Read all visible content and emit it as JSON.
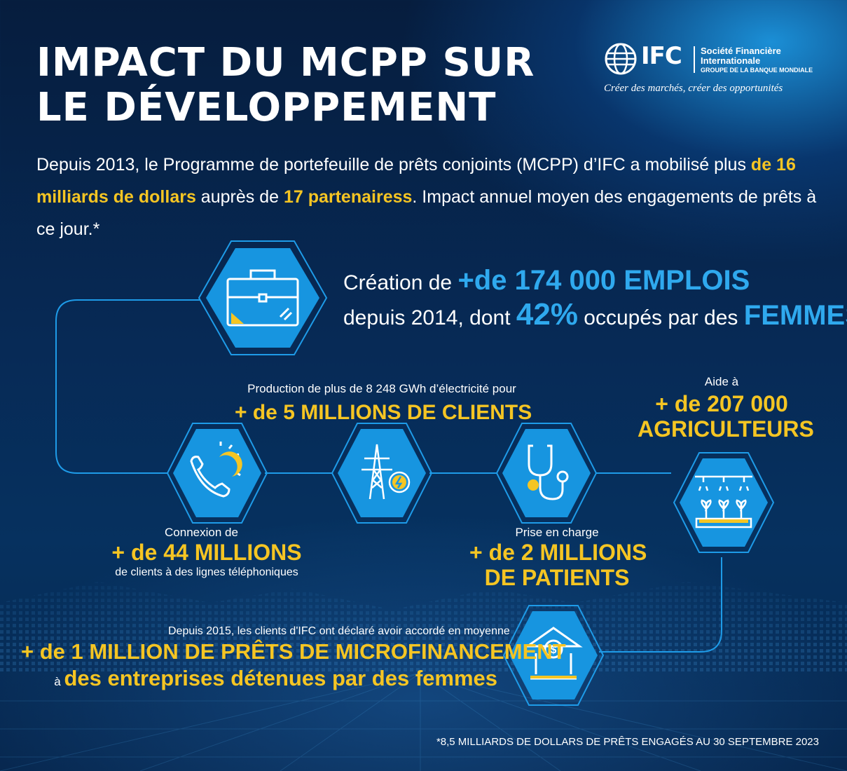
{
  "header": {
    "title_line1": "IMPACT DU MCPP SUR",
    "title_line2": "LE DÉVELOPPEMENT"
  },
  "logo": {
    "name": "IFC",
    "line1": "Société Financière",
    "line2": "Internationale",
    "line3": "GROUPE DE LA BANQUE MONDIALE",
    "tagline": "Créer des marchés, créer des opportunités",
    "icon": "globe-icon"
  },
  "intro": {
    "part1": "Depuis 2013, le Programme de portefeuille de prêts conjoints (MCPP) d’IFC a mobilisé plus ",
    "amount": "de 16 milliards de dollars",
    "part2": " auprès de ",
    "partners": "17 partenairess",
    "part3": ". Impact annuel moyen des engagements de prêts à ce jour.*"
  },
  "jobs": {
    "icon": "briefcase-icon",
    "pre": "Création de ",
    "value": "+de 174 000 EMPLOIS",
    "line2_pre": "depuis 2014, dont ",
    "percent": "42%",
    "line2_mid": " occupés par des ",
    "women": "FEMMES"
  },
  "electricity": {
    "icon": "power-tower-icon",
    "label": "Production de plus de 8 248 GWh d’électricité pour",
    "value": "+ de 5 MILLIONS DE CLIENTS"
  },
  "phone": {
    "icon": "phone-icon",
    "label": "Connexion de",
    "value": "+ de 44 MILLIONS",
    "sub": "de clients à des lignes téléphoniques"
  },
  "health": {
    "icon": "stethoscope-icon",
    "label": "Prise en charge",
    "value1": "+ de 2 MILLIONS",
    "value2": "DE PATIENTS"
  },
  "farmers": {
    "icon": "seedlings-icon",
    "label": "Aide à",
    "value1": "+ de 207 000",
    "value2": "AGRICULTEURS"
  },
  "microfinance": {
    "icon": "bank-icon",
    "label": "Depuis 2015, les clients d'IFC ont déclaré avoir accordé en moyenne",
    "value": "+ de 1 MILLION DE PRÊTS DE MICROFINANCEMENT",
    "sub_pre": "à ",
    "sub": "des entreprises détenues par des femmes"
  },
  "footnote": "*8,5 MILLIARDS DE DOLLARS DE PRÊTS ENGAGÉS AU 30 SEPTEMBRE 2023",
  "colors": {
    "accent_yellow": "#f5c523",
    "accent_cyan": "#2fa9ee",
    "hex_fill": "#1795e0"
  }
}
